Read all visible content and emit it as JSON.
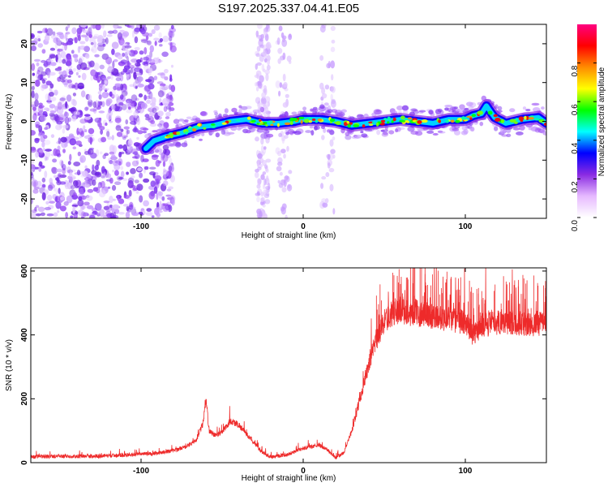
{
  "figure": {
    "title": "S197.2025.337.04.41.E05"
  },
  "colors": {
    "snr_line": "#ee2b2b",
    "spectrogram_ridge": "#00d2ff",
    "colormap_stops": [
      "#ffffff",
      "#e6b9ff",
      "#8a2be2",
      "#0000ff",
      "#00ffff",
      "#00ff00",
      "#ffff00",
      "#ff8c00",
      "#ff0000",
      "#ff0080"
    ]
  },
  "chart_data": [
    {
      "type": "heatmap",
      "name": "spectrogram",
      "xlabel": "Height of straight line (km)",
      "ylabel": "Frequency (Hz)",
      "xlim": [
        -168,
        150
      ],
      "ylim": [
        -25,
        25
      ],
      "xticks": [
        -100,
        0,
        100
      ],
      "xtick_labels": [
        "-100",
        "0",
        "100"
      ],
      "yticks": [
        -20,
        -10,
        0,
        10,
        20
      ],
      "ytick_labels": [
        "-20",
        "-10",
        "0",
        "10",
        "20"
      ],
      "ridge": {
        "description_series": "dominant frequency ridge",
        "x": [
          -97,
          -92,
          -85,
          -75,
          -65,
          -55,
          -45,
          -35,
          -25,
          -15,
          -5,
          0,
          10,
          20,
          30,
          40,
          50,
          60,
          70,
          80,
          90,
          100,
          105,
          110,
          113,
          118,
          125,
          135,
          145,
          150
        ],
        "y": [
          -7,
          -5,
          -4,
          -3,
          -1.5,
          -1,
          0,
          0.5,
          -0.5,
          -0.5,
          0,
          0.5,
          0.5,
          0,
          -1,
          -0.5,
          0,
          0.5,
          0,
          -0.5,
          0.5,
          0.5,
          1.5,
          2,
          4,
          1,
          -0.5,
          0.5,
          1,
          -0.5
        ]
      },
      "colorbar": {
        "label": "Normalized spectral amplitude",
        "range": [
          0,
          1
        ],
        "ticks": [
          0.0,
          0.2,
          0.4,
          0.6,
          0.8
        ],
        "tick_labels": [
          "0.0",
          "0.2",
          "0.4",
          "0.6",
          "0.8"
        ]
      }
    },
    {
      "type": "line",
      "name": "snr",
      "xlabel": "Height of straight line (km)",
      "ylabel": "SNR (10 * v/v)",
      "xlim": [
        -168,
        150
      ],
      "ylim": [
        0,
        610
      ],
      "xticks": [
        -100,
        0,
        100
      ],
      "xtick_labels": [
        "-100",
        "0",
        "100"
      ],
      "yticks": [
        0,
        200,
        400,
        600
      ],
      "ytick_labels": [
        "0",
        "200",
        "400",
        "600"
      ],
      "series": [
        {
          "name": "SNR",
          "x": [
            -168,
            -150,
            -130,
            -110,
            -90,
            -80,
            -72,
            -66,
            -62,
            -60,
            -58,
            -54,
            -50,
            -45,
            -40,
            -35,
            -30,
            -25,
            -20,
            -10,
            0,
            5,
            10,
            15,
            20,
            25,
            30,
            35,
            40,
            45,
            50,
            55,
            60,
            65,
            70,
            80,
            90,
            100,
            105,
            110,
            120,
            130,
            140,
            150
          ],
          "y": [
            18,
            20,
            20,
            24,
            30,
            38,
            50,
            70,
            120,
            200,
            100,
            85,
            95,
            130,
            120,
            90,
            60,
            30,
            18,
            25,
            45,
            50,
            55,
            40,
            15,
            30,
            100,
            200,
            300,
            380,
            440,
            470,
            480,
            470,
            470,
            460,
            450,
            440,
            400,
            430,
            440,
            440,
            430,
            440
          ]
        }
      ]
    }
  ]
}
